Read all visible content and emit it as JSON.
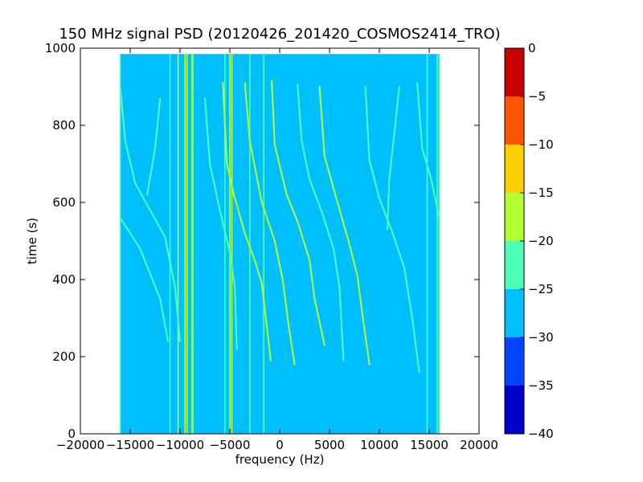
{
  "chart_data": {
    "type": "heatmap",
    "title": "150 MHz signal PSD (20120426_201420_COSMOS2414_TRO)",
    "xlabel": "frequency (Hz)",
    "ylabel": "time (s)",
    "xlim": [
      -20000,
      20000
    ],
    "ylim": [
      0,
      1000
    ],
    "x_ticks": [
      -20000,
      -15000,
      -10000,
      -5000,
      0,
      5000,
      10000,
      15000,
      20000
    ],
    "x_tick_labels": [
      "−20000",
      "−15000",
      "−10000",
      "−5000",
      "0",
      "5000",
      "10000",
      "15000",
      "20000"
    ],
    "y_ticks": [
      0,
      200,
      400,
      600,
      800,
      1000
    ],
    "y_tick_labels": [
      "0",
      "200",
      "400",
      "600",
      "800",
      "1000"
    ],
    "grid": false,
    "data_extent": {
      "freq_min": -16000,
      "freq_max": 16000,
      "time_min": 0,
      "time_max": 985
    },
    "background_level": -27.5,
    "colorbar": {
      "levels": [
        -40,
        -35,
        -30,
        -25,
        -20,
        -15,
        -10,
        -5,
        0
      ],
      "tick_labels": [
        "−40",
        "−35",
        "−30",
        "−25",
        "−20",
        "−15",
        "−10",
        "−5",
        "0"
      ],
      "colors": [
        "#0000c8",
        "#0044ff",
        "#00bfff",
        "#4dffb3",
        "#b3ff33",
        "#ffd000",
        "#ff5500",
        "#c80000"
      ]
    },
    "vertical_lines": [
      {
        "freq": -16000,
        "level": -22
      },
      {
        "freq": -11000,
        "level": -22
      },
      {
        "freq": -10200,
        "level": -18
      },
      {
        "freq": -9500,
        "level": -18
      },
      {
        "freq": -9300,
        "level": -18
      },
      {
        "freq": -8800,
        "level": -18
      },
      {
        "freq": -8700,
        "level": -22
      },
      {
        "freq": -5500,
        "level": -22
      },
      {
        "freq": -5000,
        "level": -18
      },
      {
        "freq": -4800,
        "level": -18
      },
      {
        "freq": -3000,
        "level": -22
      },
      {
        "freq": -1600,
        "level": -22
      },
      {
        "freq": 14800,
        "level": -22
      },
      {
        "freq": 15800,
        "level": -22
      },
      {
        "freq": 16000,
        "level": -22
      }
    ],
    "series": [
      {
        "level": -22,
        "points": [
          [
            -16000,
            560
          ],
          [
            -14000,
            480
          ],
          [
            -12000,
            350
          ],
          [
            -11200,
            240
          ]
        ]
      },
      {
        "level": -22,
        "points": [
          [
            -16000,
            900
          ],
          [
            -15500,
            760
          ],
          [
            -14500,
            650
          ],
          [
            -13000,
            580
          ],
          [
            -11500,
            510
          ],
          [
            -10500,
            380
          ],
          [
            -10000,
            240
          ]
        ]
      },
      {
        "level": -22,
        "points": [
          [
            -7500,
            870
          ],
          [
            -7000,
            700
          ],
          [
            -6000,
            580
          ],
          [
            -5000,
            470
          ],
          [
            -4500,
            380
          ],
          [
            -4300,
            220
          ]
        ]
      },
      {
        "level": -18,
        "points": [
          [
            -5700,
            910
          ],
          [
            -5300,
            700
          ],
          [
            -4600,
            620
          ],
          [
            -3500,
            520
          ],
          [
            -2500,
            450
          ],
          [
            -1800,
            390
          ],
          [
            -1300,
            280
          ],
          [
            -900,
            190
          ]
        ]
      },
      {
        "level": -18,
        "points": [
          [
            -3500,
            910
          ],
          [
            -3000,
            760
          ],
          [
            -1800,
            600
          ],
          [
            -500,
            500
          ],
          [
            300,
            400
          ],
          [
            900,
            280
          ],
          [
            1500,
            180
          ]
        ]
      },
      {
        "level": -18,
        "points": [
          [
            -800,
            915
          ],
          [
            -500,
            750
          ],
          [
            700,
            620
          ],
          [
            1800,
            550
          ],
          [
            3000,
            450
          ],
          [
            3500,
            350
          ],
          [
            4500,
            230
          ]
        ]
      },
      {
        "level": -22,
        "points": [
          [
            1800,
            905
          ],
          [
            2200,
            760
          ],
          [
            3000,
            660
          ],
          [
            4300,
            570
          ],
          [
            5400,
            480
          ],
          [
            6000,
            380
          ],
          [
            6400,
            190
          ]
        ]
      },
      {
        "level": -18,
        "points": [
          [
            4000,
            900
          ],
          [
            4500,
            720
          ],
          [
            5800,
            600
          ],
          [
            6900,
            500
          ],
          [
            7800,
            410
          ],
          [
            8300,
            310
          ],
          [
            9000,
            180
          ]
        ]
      },
      {
        "level": -22,
        "points": [
          [
            8600,
            900
          ],
          [
            9000,
            710
          ],
          [
            10000,
            610
          ],
          [
            11200,
            530
          ],
          [
            12500,
            430
          ],
          [
            13300,
            300
          ],
          [
            14000,
            160
          ]
        ]
      },
      {
        "level": -25,
        "points": [
          [
            12000,
            900
          ],
          [
            11500,
            780
          ],
          [
            11000,
            660
          ],
          [
            10800,
            530
          ]
        ]
      },
      {
        "level": -22,
        "points": [
          [
            13800,
            910
          ],
          [
            14300,
            740
          ],
          [
            15200,
            660
          ],
          [
            16000,
            560
          ]
        ]
      },
      {
        "level": -25,
        "points": [
          [
            -12000,
            870
          ],
          [
            -12500,
            740
          ],
          [
            -13300,
            620
          ]
        ]
      }
    ]
  }
}
